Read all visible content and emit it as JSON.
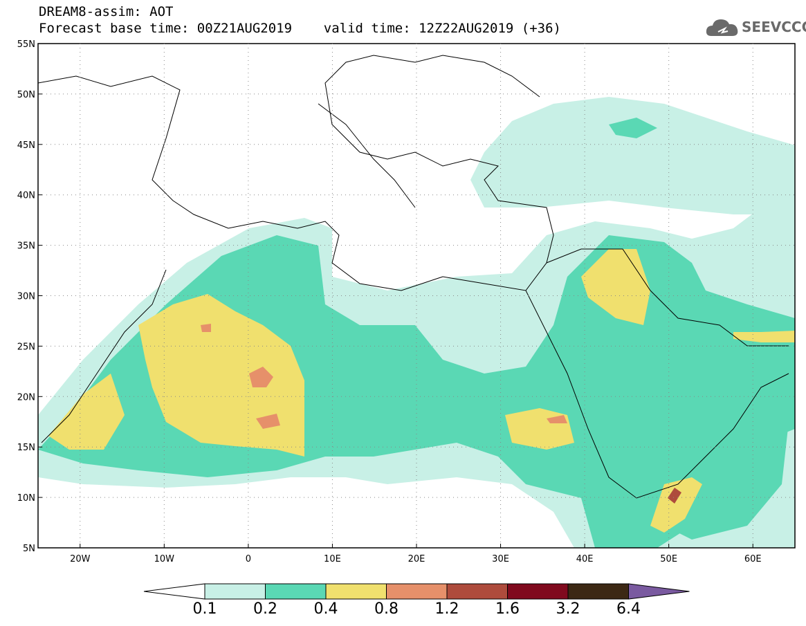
{
  "header": {
    "line1": "DREAM8-assim: AOT",
    "line2": "Forecast base time: 00Z21AUG2019    valid time: 12Z22AUG2019 (+36)"
  },
  "logo": {
    "text": "SEEVCCC",
    "icon": "cloud-icon"
  },
  "map": {
    "projection": "equirectangular",
    "lon_range": [
      -25,
      65
    ],
    "lat_range": [
      5,
      55
    ],
    "lat_labels": [
      "55N",
      "50N",
      "45N",
      "40N",
      "35N",
      "30N",
      "25N",
      "20N",
      "15N",
      "10N",
      "5N"
    ],
    "lon_labels": [
      "20W",
      "10W",
      "0",
      "10E",
      "20E",
      "30E",
      "40E",
      "50E",
      "60E"
    ],
    "grid": "dotted"
  },
  "colorbar": {
    "labels": [
      "0.1",
      "0.2",
      "0.4",
      "0.8",
      "1.2",
      "1.6",
      "3.2",
      "6.4"
    ],
    "colors": [
      "#ffffff",
      "#c8f0e6",
      "#5ad8b4",
      "#f0e06e",
      "#e6906a",
      "#ae4b3c",
      "#800a1e",
      "#3c2814",
      "#7a5aa0"
    ]
  },
  "field_colors": {
    "c01": "#c8f0e6",
    "c02": "#5ad8b4",
    "c04": "#f0e06e",
    "c08": "#e6906a",
    "c12": "#ae4b3c"
  }
}
